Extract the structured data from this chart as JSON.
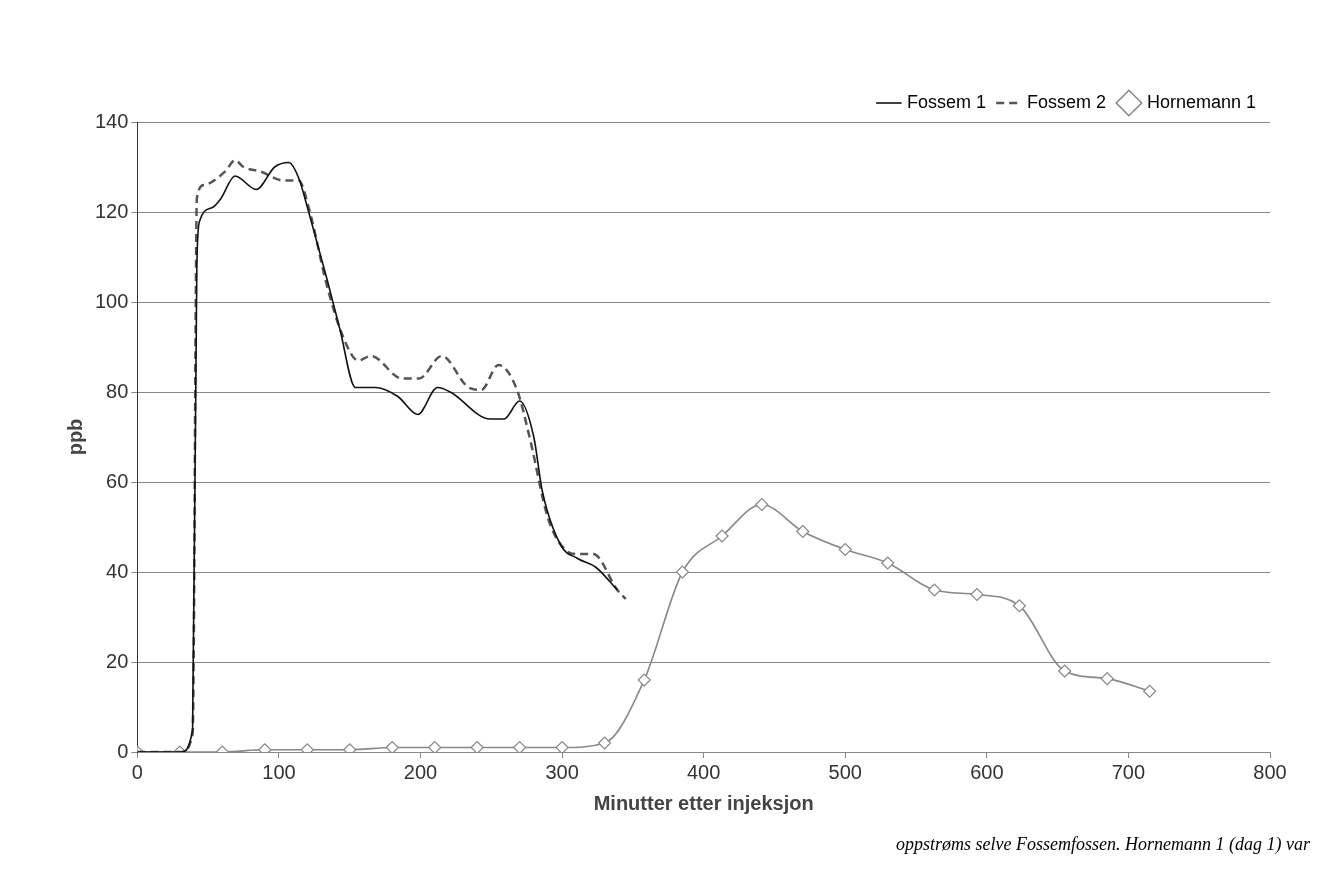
{
  "chart_data": {
    "type": "line",
    "xlabel": "Minutter etter injeksjon",
    "ylabel": "ppb",
    "xlim": [
      0,
      800
    ],
    "xticks": [
      0,
      100,
      200,
      300,
      400,
      500,
      600,
      700,
      800
    ],
    "ylim": [
      0,
      140
    ],
    "yticks": [
      0,
      20,
      40,
      60,
      80,
      100,
      120,
      140
    ],
    "grid": "y",
    "legend": "top right",
    "annotations": [
      "oppstrøms selve Fossemfossen. Hornemann 1 (dag 1) var"
    ],
    "series": [
      {
        "name": "Fossem 1",
        "color": "#111111",
        "line_style": "solid",
        "marker": "none",
        "x": [
          0,
          31,
          39,
          42,
          44,
          53,
          59,
          69,
          84,
          97,
          107,
          114,
          121,
          134,
          143,
          154,
          168,
          184,
          198,
          212,
          221,
          249,
          259,
          270,
          280,
          286,
          299,
          311,
          324,
          339
        ],
        "values": [
          0,
          0,
          5,
          108,
          118,
          121,
          123,
          128,
          125,
          130,
          131,
          127.5,
          120,
          105,
          94,
          81,
          81,
          79,
          75,
          81,
          80,
          74,
          74,
          78,
          70,
          58,
          46,
          43,
          41,
          36
        ]
      },
      {
        "name": "Fossem 2",
        "color": "#555555",
        "line_style": "dashed",
        "marker": "none",
        "x": [
          0,
          31,
          39,
          40,
          41,
          42,
          47,
          62,
          69,
          75,
          87,
          103,
          114,
          121,
          134,
          145,
          156,
          165,
          187,
          199,
          215,
          234,
          243,
          255,
          268,
          277,
          290,
          302,
          311,
          322,
          339,
          345
        ],
        "values": [
          0,
          0,
          4,
          30,
          88,
          123,
          126,
          129,
          131.5,
          130,
          129,
          127,
          127,
          121,
          103.5,
          92.5,
          87,
          88,
          83,
          83,
          88,
          81,
          80.5,
          86,
          80.6,
          70,
          52,
          45,
          44,
          44,
          36,
          34
        ]
      },
      {
        "name": "Hornemann 1",
        "color": "#888888",
        "line_style": "solid",
        "marker": "diamond",
        "x": [
          0,
          30,
          60,
          90,
          120,
          150,
          180,
          210,
          240,
          270,
          300,
          330,
          358,
          385,
          413,
          441,
          470,
          500,
          530,
          563,
          593,
          623,
          655,
          685,
          715
        ],
        "values": [
          0,
          0,
          0,
          0.5,
          0.5,
          0.5,
          1,
          1,
          1,
          1,
          1,
          2,
          16,
          40,
          48,
          55,
          49,
          45,
          42,
          36,
          35,
          32.5,
          18,
          16.3,
          13.5
        ]
      }
    ]
  }
}
